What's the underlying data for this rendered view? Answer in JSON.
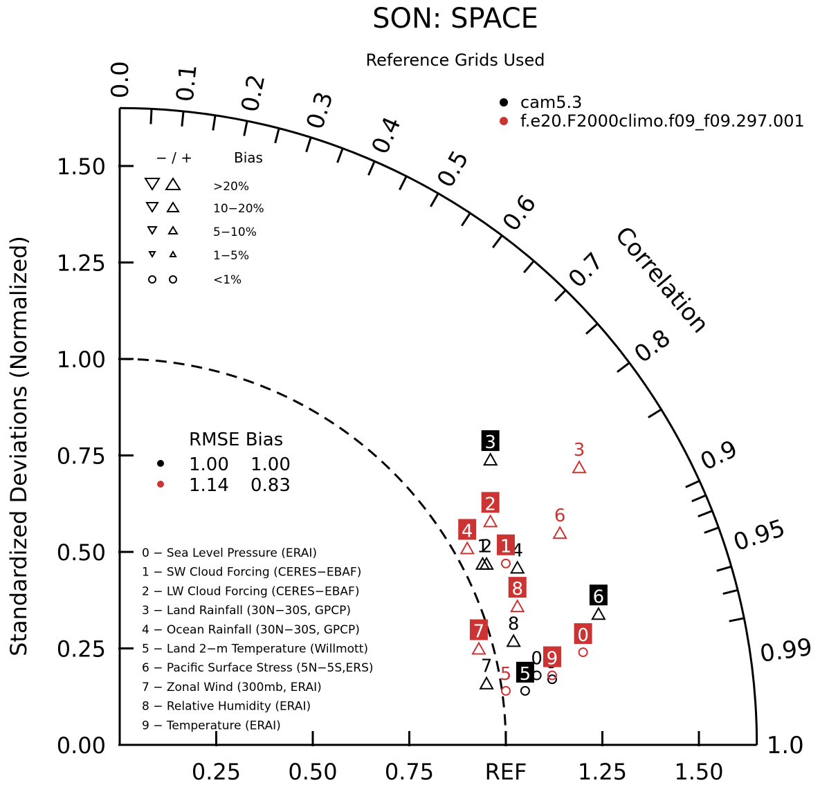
{
  "title": "SON: SPACE",
  "subtitle": "Reference Grids Used",
  "chart_data": {
    "type": "scatter",
    "subtype": "taylor-diagram",
    "ylabel": "Standardized Deviations (Normalized)",
    "arc_label": "Correlation",
    "ref_label": "REF",
    "std_ticks": [
      "0.00",
      "0.25",
      "0.50",
      "0.75",
      "1.00",
      "1.25",
      "1.50"
    ],
    "x_ticks": [
      "0.25",
      "0.50",
      "0.75",
      "1.25",
      "1.50"
    ],
    "corr_ticks": [
      "0.0",
      "0.1",
      "0.2",
      "0.3",
      "0.4",
      "0.5",
      "0.6",
      "0.7",
      "0.8",
      "0.9",
      "0.95",
      "0.99",
      "1.0"
    ],
    "std_max": 1.65,
    "legend_models": [
      {
        "name": "cam5.3",
        "color": "#000000"
      },
      {
        "name": "f.e20.F2000climo.f09_f09.297.001",
        "color": "#cc3333"
      }
    ],
    "bias_legend": {
      "header_sign": "− / +",
      "header_label": "Bias",
      "rows": [
        ">20%",
        "10−20%",
        "5−10%",
        "1−5%",
        "<1%"
      ]
    },
    "rmse_bias": {
      "header": "RMSE Bias",
      "rows": [
        {
          "color": "#000000",
          "rmse": "1.00",
          "bias": "1.00"
        },
        {
          "color": "#cc3333",
          "rmse": "1.14",
          "bias": "0.83"
        }
      ]
    },
    "variables": [
      "0 − Sea Level Pressure (ERAI)",
      "1 − SW Cloud Forcing (CERES−EBAF)",
      "2 − LW Cloud Forcing (CERES−EBAF)",
      "3 − Land Rainfall (30N−30S, GPCP)",
      "4 − Ocean Rainfall (30N−30S, GPCP)",
      "5 − Land 2−m Temperature (Willmott)",
      "6 − Pacific Surface Stress (5N−5S,ERS)",
      "7 − Zonal Wind (300mb, ERAI)",
      "8 − Relative Humidity (ERAI)",
      "9 − Temperature (ERAI)"
    ],
    "series": [
      {
        "name": "cam5.3",
        "color": "#000000",
        "points": [
          {
            "id": "0",
            "x": 1.08,
            "y": 0.18,
            "marker": "circle",
            "boxed": false
          },
          {
            "id": "1",
            "x": 0.94,
            "y": 0.47,
            "marker": "up",
            "boxed": false
          },
          {
            "id": "2",
            "x": 0.95,
            "y": 0.47,
            "marker": "up",
            "boxed": false
          },
          {
            "id": "3",
            "x": 0.96,
            "y": 0.74,
            "marker": "up",
            "boxed": true
          },
          {
            "id": "4",
            "x": 1.03,
            "y": 0.46,
            "marker": "up",
            "boxed": false
          },
          {
            "id": "5",
            "x": 1.05,
            "y": 0.14,
            "marker": "circle",
            "boxed": true
          },
          {
            "id": "6",
            "x": 1.24,
            "y": 0.34,
            "marker": "up",
            "boxed": true
          },
          {
            "id": "7",
            "x": 0.95,
            "y": 0.16,
            "marker": "up",
            "boxed": false
          },
          {
            "id": "8",
            "x": 1.02,
            "y": 0.27,
            "marker": "up",
            "boxed": false
          },
          {
            "id": "9",
            "x": 1.12,
            "y": 0.17,
            "marker": "circle",
            "boxed": false
          }
        ]
      },
      {
        "name": "f.e20.F2000climo.f09_f09.297.001",
        "color": "#cc3333",
        "points": [
          {
            "id": "0",
            "x": 1.2,
            "y": 0.24,
            "marker": "circle",
            "boxed": true
          },
          {
            "id": "1",
            "x": 1.0,
            "y": 0.47,
            "marker": "circle",
            "boxed": true
          },
          {
            "id": "2",
            "x": 0.96,
            "y": 0.58,
            "marker": "up",
            "boxed": true
          },
          {
            "id": "3",
            "x": 1.19,
            "y": 0.72,
            "marker": "up",
            "boxed": false
          },
          {
            "id": "4",
            "x": 0.9,
            "y": 0.51,
            "marker": "up",
            "boxed": true
          },
          {
            "id": "5",
            "x": 1.0,
            "y": 0.14,
            "marker": "circle",
            "boxed": false
          },
          {
            "id": "6",
            "x": 1.14,
            "y": 0.55,
            "marker": "up",
            "boxed": false
          },
          {
            "id": "7",
            "x": 0.93,
            "y": 0.25,
            "marker": "up",
            "boxed": true
          },
          {
            "id": "8",
            "x": 1.03,
            "y": 0.36,
            "marker": "up",
            "boxed": true
          },
          {
            "id": "9",
            "x": 1.12,
            "y": 0.18,
            "marker": "circle",
            "boxed": true
          }
        ]
      }
    ]
  }
}
